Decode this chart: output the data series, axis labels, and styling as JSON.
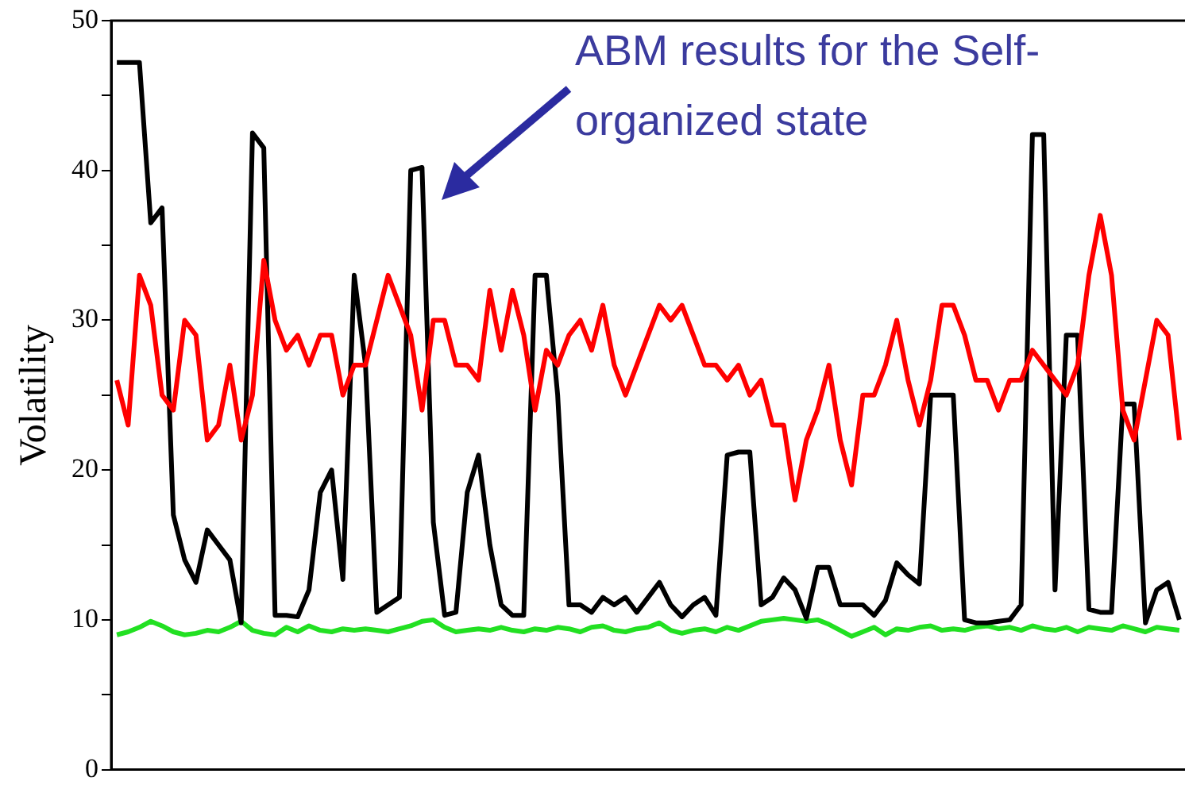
{
  "chart_data": {
    "type": "line",
    "ylabel": "Volatility",
    "annotations": [
      "ABM results for the Self-organized state"
    ],
    "categories": [
      null,
      null,
      null,
      null,
      null,
      null,
      null,
      null,
      null,
      null,
      null,
      null,
      null,
      null,
      null,
      null,
      null,
      null,
      null,
      null,
      null,
      null,
      null,
      null,
      null,
      null,
      null,
      null,
      null,
      null,
      null,
      null,
      null,
      null,
      null,
      null,
      null,
      null,
      null,
      null,
      null,
      null,
      null,
      null,
      null,
      null,
      null,
      null,
      null,
      null,
      null,
      null,
      null,
      null,
      null,
      null,
      null,
      null,
      null,
      null,
      null,
      null,
      null,
      null,
      null,
      null,
      null,
      null,
      null,
      null,
      null,
      null,
      null,
      null,
      null,
      null,
      null,
      null,
      null,
      null,
      null,
      null,
      null,
      null,
      null,
      null,
      null,
      null,
      null,
      null,
      null,
      null,
      null,
      null,
      null
    ],
    "series": [
      {
        "color": "#ff0000",
        "values": [
          26,
          23,
          33,
          31,
          25,
          24,
          30,
          29,
          22,
          23,
          27,
          22,
          25,
          34,
          30,
          28,
          29,
          27,
          29,
          29,
          25,
          27,
          27,
          30,
          33,
          31,
          29,
          24,
          30,
          30,
          27,
          27,
          26,
          32,
          28,
          32,
          29,
          24,
          28,
          27,
          29,
          30,
          28,
          31,
          27,
          25,
          27,
          29,
          31,
          30,
          31,
          29,
          27,
          27,
          26,
          27,
          25,
          26,
          23,
          23,
          18,
          22,
          24,
          27,
          22,
          19,
          25,
          25,
          27,
          30,
          26,
          23,
          26,
          31,
          31,
          29,
          26,
          26,
          24,
          26,
          26,
          28,
          27,
          26,
          25,
          27,
          33,
          37,
          33,
          24,
          22,
          26,
          30,
          29,
          22
        ]
      },
      {
        "color": "#000000",
        "values": [
          47.2,
          47.2,
          47.2,
          36.5,
          37.5,
          17,
          14,
          12.5,
          16,
          15,
          14,
          9.8,
          42.5,
          41.5,
          10.3,
          10.3,
          10.2,
          12,
          18.5,
          20,
          12.7,
          33,
          27,
          10.5,
          11,
          11.5,
          40,
          40.2,
          16.5,
          10.3,
          10.5,
          18.5,
          21,
          15,
          11,
          10.3,
          10.3,
          33,
          33,
          25,
          11,
          11,
          10.5,
          11.5,
          11,
          11.5,
          10.5,
          11.5,
          12.5,
          11,
          10.2,
          11,
          11.5,
          10.3,
          21,
          21.2,
          21.2,
          11,
          11.5,
          12.8,
          12,
          10.1,
          13.5,
          13.5,
          11,
          11,
          11,
          10.3,
          11.3,
          13.8,
          13,
          12.4,
          25,
          25,
          25,
          10,
          9.8,
          9.8,
          9.9,
          10,
          11,
          42.4,
          42.4,
          12,
          29,
          29,
          10.7,
          10.5,
          10.5,
          24.4,
          24.4,
          9.8,
          12,
          12.5,
          10
        ]
      },
      {
        "color": "#22e022",
        "values": [
          9.0,
          9.2,
          9.5,
          9.9,
          9.6,
          9.2,
          9.0,
          9.1,
          9.3,
          9.2,
          9.5,
          9.9,
          9.3,
          9.1,
          9.0,
          9.5,
          9.2,
          9.6,
          9.3,
          9.2,
          9.4,
          9.3,
          9.4,
          9.3,
          9.2,
          9.4,
          9.6,
          9.9,
          10.0,
          9.5,
          9.2,
          9.3,
          9.4,
          9.3,
          9.5,
          9.3,
          9.2,
          9.4,
          9.3,
          9.5,
          9.4,
          9.2,
          9.5,
          9.6,
          9.3,
          9.2,
          9.4,
          9.5,
          9.8,
          9.3,
          9.1,
          9.3,
          9.4,
          9.2,
          9.5,
          9.3,
          9.6,
          9.9,
          10.0,
          10.1,
          10.0,
          9.9,
          10.0,
          9.7,
          9.3,
          8.9,
          9.2,
          9.5,
          9.0,
          9.4,
          9.3,
          9.5,
          9.6,
          9.3,
          9.4,
          9.3,
          9.5,
          9.6,
          9.4,
          9.5,
          9.3,
          9.6,
          9.4,
          9.3,
          9.5,
          9.2,
          9.5,
          9.4,
          9.3,
          9.6,
          9.4,
          9.2,
          9.5,
          9.4,
          9.3
        ]
      }
    ],
    "ylim": [
      0,
      50
    ],
    "yticks": [
      0,
      {
        "value": 5,
        "label": null
      },
      10,
      {
        "value": 15,
        "label": null
      },
      20,
      {
        "value": 25,
        "label": null
      },
      30,
      {
        "value": 35,
        "label": null
      },
      40,
      {
        "value": 45,
        "label": null
      },
      50
    ],
    "marker": "none",
    "tick_labels": "y"
  }
}
